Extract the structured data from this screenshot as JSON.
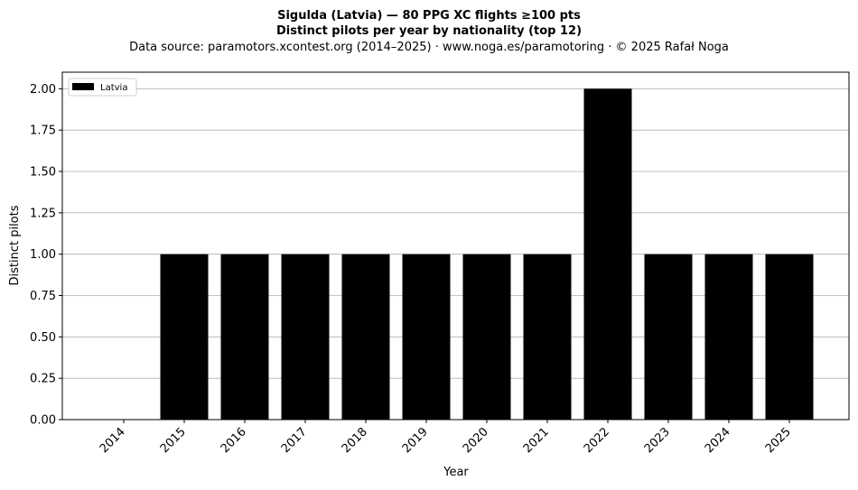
{
  "chart_data": {
    "type": "bar",
    "title_line1": "Sigulda (Latvia)  —  80 PPG XC flights ≥100 pts",
    "title_line2": "Distinct pilots per year by nationality (top 12)",
    "subtitle": "Data source: paramotors.xcontest.org (2014–2025)  ·  www.noga.es/paramotoring  ·  © 2025 Rafał Noga",
    "xlabel": "Year",
    "ylabel": "Distinct pilots",
    "categories": [
      "2014",
      "2015",
      "2016",
      "2017",
      "2018",
      "2019",
      "2020",
      "2021",
      "2022",
      "2023",
      "2024",
      "2025"
    ],
    "series": [
      {
        "name": "Latvia",
        "color": "#000000",
        "values": [
          0,
          1,
          1,
          1,
          1,
          1,
          1,
          1,
          2,
          1,
          1,
          1
        ]
      }
    ],
    "ylim": [
      0,
      2.1
    ],
    "yticks": [
      "0.00",
      "0.25",
      "0.50",
      "0.75",
      "1.00",
      "1.25",
      "1.50",
      "1.75",
      "2.00"
    ],
    "ytick_values": [
      0,
      0.25,
      0.5,
      0.75,
      1.0,
      1.25,
      1.5,
      1.75,
      2.0
    ],
    "grid": "horizontal",
    "legend_position": "top-left"
  }
}
